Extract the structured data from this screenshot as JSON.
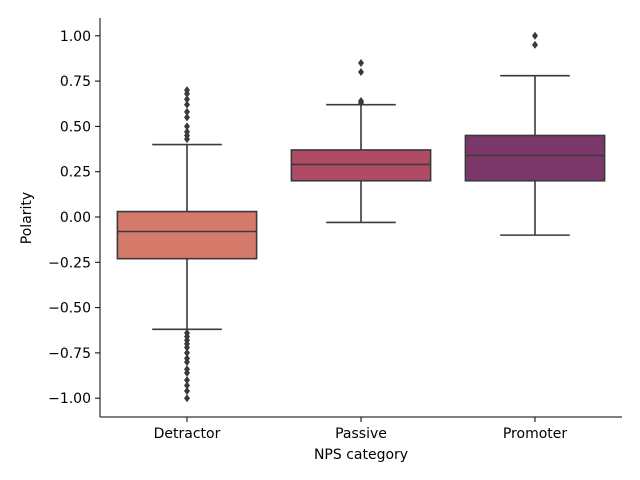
{
  "chart_data": {
    "type": "boxplot",
    "xlabel": "NPS category",
    "ylabel": "Polarity",
    "categories": [
      "Detractor",
      "Passive",
      "Promoter"
    ],
    "ylim": [
      -1.1,
      1.1
    ],
    "yticks": [
      {
        "value": 1.0,
        "label": "1.00"
      },
      {
        "value": 0.75,
        "label": "0.75"
      },
      {
        "value": 0.5,
        "label": "0.50"
      },
      {
        "value": 0.25,
        "label": "0.25"
      },
      {
        "value": 0.0,
        "label": "0.00"
      },
      {
        "value": -0.25,
        "label": "−0.25"
      },
      {
        "value": -0.5,
        "label": "−0.50"
      },
      {
        "value": -0.75,
        "label": "−0.75"
      },
      {
        "value": -1.0,
        "label": "−1.00"
      }
    ],
    "boxes": [
      {
        "category": "Detractor",
        "color": "#d57a6b",
        "whisker_low": -0.62,
        "q1": -0.23,
        "median": -0.08,
        "q3": 0.03,
        "whisker_high": 0.4,
        "outliers": [
          0.43,
          0.45,
          0.47,
          0.5,
          0.55,
          0.58,
          0.62,
          0.65,
          0.68,
          0.7,
          -0.64,
          -0.66,
          -0.68,
          -0.7,
          -0.72,
          -0.75,
          -0.78,
          -0.8,
          -0.84,
          -0.86,
          -0.9,
          -0.93,
          -0.96,
          -1.0
        ]
      },
      {
        "category": "Passive",
        "color": "#b04b66",
        "whisker_low": -0.03,
        "q1": 0.2,
        "median": 0.29,
        "q3": 0.37,
        "whisker_high": 0.62,
        "outliers": [
          0.63,
          0.64,
          0.8,
          0.85
        ]
      },
      {
        "category": "Promoter",
        "color": "#7c376a",
        "whisker_low": -0.1,
        "q1": 0.2,
        "median": 0.34,
        "q3": 0.45,
        "whisker_high": 0.78,
        "outliers": [
          0.95,
          1.0
        ]
      }
    ]
  }
}
